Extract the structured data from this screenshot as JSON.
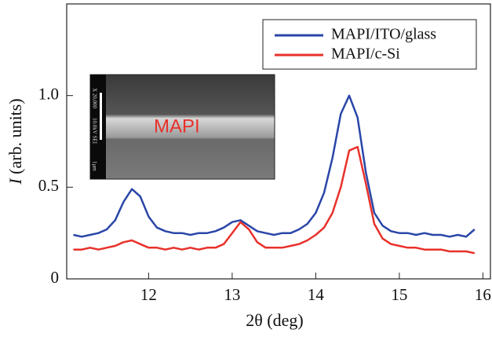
{
  "chart_data": {
    "type": "line",
    "x_label": "2θ (deg)",
    "y_label_symbol": "I",
    "y_label": "(arb. units)",
    "xlim": [
      11.02,
      16.09
    ],
    "ylim": [
      0,
      1.5
    ],
    "xticks": [
      12,
      13,
      14,
      15,
      16
    ],
    "yticks": [
      0,
      0.5,
      {
        "value": 1,
        "label": "1.0"
      }
    ],
    "legend": "upper right",
    "x": [
      11.1,
      11.2,
      11.3,
      11.4,
      11.5,
      11.6,
      11.7,
      11.8,
      11.9,
      12.0,
      12.1,
      12.2,
      12.3,
      12.4,
      12.5,
      12.6,
      12.7,
      12.8,
      12.9,
      13.0,
      13.1,
      13.2,
      13.3,
      13.4,
      13.5,
      13.6,
      13.7,
      13.8,
      13.9,
      14.0,
      14.1,
      14.2,
      14.3,
      14.4,
      14.5,
      14.6,
      14.7,
      14.8,
      14.9,
      15.0,
      15.1,
      15.2,
      15.3,
      15.4,
      15.5,
      15.6,
      15.7,
      15.8,
      15.9
    ],
    "series": [
      {
        "name": "MAPI/ITO/glass",
        "color": "#2a46a8",
        "values": [
          0.24,
          0.23,
          0.24,
          0.25,
          0.27,
          0.32,
          0.42,
          0.49,
          0.45,
          0.34,
          0.28,
          0.26,
          0.25,
          0.25,
          0.24,
          0.25,
          0.25,
          0.26,
          0.28,
          0.31,
          0.32,
          0.29,
          0.26,
          0.25,
          0.24,
          0.25,
          0.25,
          0.27,
          0.3,
          0.36,
          0.47,
          0.66,
          0.9,
          1.0,
          0.88,
          0.58,
          0.36,
          0.29,
          0.26,
          0.25,
          0.25,
          0.24,
          0.25,
          0.24,
          0.24,
          0.23,
          0.24,
          0.23,
          0.27
        ]
      },
      {
        "name": "MAPI/c-Si",
        "color": "#e8312b",
        "values": [
          0.16,
          0.16,
          0.17,
          0.16,
          0.17,
          0.18,
          0.2,
          0.21,
          0.19,
          0.17,
          0.17,
          0.16,
          0.17,
          0.16,
          0.17,
          0.16,
          0.17,
          0.17,
          0.19,
          0.25,
          0.31,
          0.27,
          0.2,
          0.17,
          0.17,
          0.17,
          0.18,
          0.19,
          0.21,
          0.24,
          0.28,
          0.36,
          0.5,
          0.7,
          0.72,
          0.52,
          0.3,
          0.22,
          0.19,
          0.18,
          0.17,
          0.17,
          0.16,
          0.16,
          0.16,
          0.15,
          0.15,
          0.15,
          0.14
        ]
      }
    ],
    "inset": {
      "label": "MAPI",
      "magnification": "X 20,000",
      "settings": "10.0kV SEI",
      "scale": "1μm"
    }
  }
}
